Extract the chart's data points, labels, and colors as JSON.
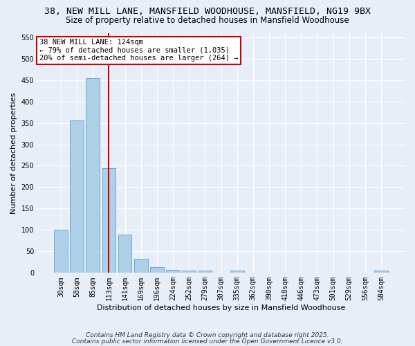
{
  "title": "38, NEW MILL LANE, MANSFIELD WOODHOUSE, MANSFIELD, NG19 9BX",
  "subtitle": "Size of property relative to detached houses in Mansfield Woodhouse",
  "xlabel": "Distribution of detached houses by size in Mansfield Woodhouse",
  "ylabel": "Number of detached properties",
  "categories": [
    "30sqm",
    "58sqm",
    "85sqm",
    "113sqm",
    "141sqm",
    "169sqm",
    "196sqm",
    "224sqm",
    "252sqm",
    "279sqm",
    "307sqm",
    "335sqm",
    "362sqm",
    "390sqm",
    "418sqm",
    "446sqm",
    "473sqm",
    "501sqm",
    "529sqm",
    "556sqm",
    "584sqm"
  ],
  "values": [
    101,
    356,
    455,
    245,
    90,
    33,
    13,
    7,
    5,
    5,
    0,
    5,
    0,
    0,
    0,
    0,
    0,
    0,
    0,
    0,
    5
  ],
  "bar_color": "#aecfe8",
  "bar_edge_color": "#6aaad4",
  "redline_index": 3,
  "annotation_line1": "38 NEW MILL LANE: 124sqm",
  "annotation_line2": "← 79% of detached houses are smaller (1,035)",
  "annotation_line3": "20% of semi-detached houses are larger (264) →",
  "annotation_box_color": "#ffffff",
  "annotation_box_edge": "#cc0000",
  "redline_color": "#cc0000",
  "ylim": [
    0,
    560
  ],
  "yticks": [
    0,
    50,
    100,
    150,
    200,
    250,
    300,
    350,
    400,
    450,
    500,
    550
  ],
  "background_color": "#e8eef8",
  "grid_color": "#ffffff",
  "footer_line1": "Contains HM Land Registry data © Crown copyright and database right 2025.",
  "footer_line2": "Contains public sector information licensed under the Open Government Licence v3.0.",
  "title_fontsize": 9.5,
  "subtitle_fontsize": 8.5,
  "axis_label_fontsize": 8,
  "tick_fontsize": 7,
  "annotation_fontsize": 7.5,
  "footer_fontsize": 6.5
}
